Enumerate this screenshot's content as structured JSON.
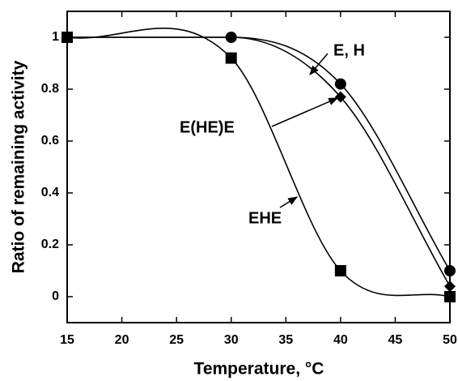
{
  "chart_data": {
    "type": "line",
    "x_label": "Temperature, °C",
    "y_label": "Ratio of remaining activity",
    "x": [
      15,
      30,
      40,
      50
    ],
    "series": [
      {
        "name": "E, H",
        "color": "#000000",
        "marker": "circle",
        "values": [
          1.0,
          1.0,
          0.82,
          0.1
        ]
      },
      {
        "name": "E(HE)E",
        "color": "#000000",
        "marker": "diamond",
        "values": [
          1.0,
          1.0,
          0.77,
          0.04
        ]
      },
      {
        "name": "EHE",
        "color": "#000000",
        "marker": "square",
        "values": [
          1.0,
          0.92,
          0.1,
          0.0
        ]
      }
    ],
    "xlim": [
      15,
      50
    ],
    "xticks": [
      15,
      20,
      25,
      30,
      35,
      40,
      45,
      50
    ],
    "ylim": [
      -0.1,
      1.1
    ],
    "yticks": [
      0,
      0.2,
      0.4,
      0.6,
      0.8,
      1
    ]
  }
}
